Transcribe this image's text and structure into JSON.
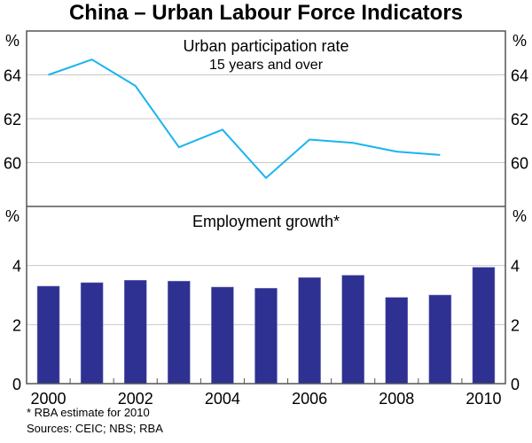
{
  "chart_data": [
    {
      "type": "line",
      "title": "China – Urban Labour Force Indicators",
      "panel_title": "Urban participation rate",
      "panel_subtitle": "15 years and over",
      "ylabel": "%",
      "ylim": [
        58,
        66
      ],
      "yticks": [
        60,
        62,
        64
      ],
      "grid": true,
      "color": "#19B4F0",
      "x": [
        2000,
        2001,
        2002,
        2003,
        2004,
        2005,
        2006,
        2007,
        2008,
        2009
      ],
      "values": [
        64.0,
        64.7,
        63.5,
        60.7,
        61.5,
        59.3,
        61.05,
        60.9,
        60.5,
        60.35
      ]
    },
    {
      "type": "bar",
      "panel_title": "Employment growth*",
      "ylabel": "%",
      "ylim": [
        0,
        6
      ],
      "yticks": [
        0,
        2,
        4
      ],
      "grid": true,
      "color": "#2E3192",
      "categories": [
        2000,
        2001,
        2002,
        2003,
        2004,
        2005,
        2006,
        2007,
        2008,
        2009,
        2010
      ],
      "xticklabels": [
        "2000",
        "2002",
        "2004",
        "2006",
        "2008",
        "2010"
      ],
      "values": [
        3.3,
        3.42,
        3.5,
        3.47,
        3.27,
        3.23,
        3.59,
        3.67,
        2.92,
        3.0,
        3.94
      ]
    }
  ],
  "footnote": "*     RBA estimate for 2010",
  "sources": "Sources: CEIC; NBS; RBA"
}
